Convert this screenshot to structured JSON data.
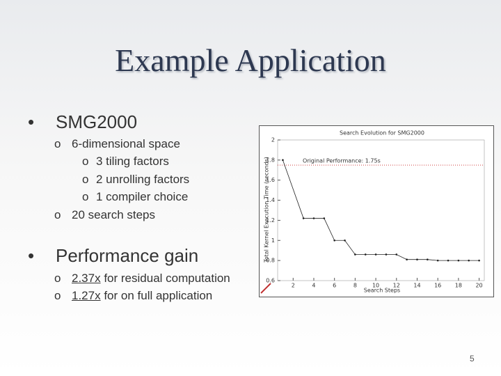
{
  "slide": {
    "title": "Example Application",
    "bullets": [
      {
        "text": "SMG2000",
        "items": [
          {
            "text": "6-dimensional space",
            "items": [
              "3 tiling factors",
              "2 unrolling factors",
              "1 compiler choice"
            ]
          },
          {
            "text": "20 search steps"
          }
        ]
      },
      {
        "text": "Performance gain",
        "items": [
          {
            "emphasis": "2.37x",
            "text": "for residual computation"
          },
          {
            "emphasis": "1.27x",
            "text": "for on full application"
          }
        ]
      }
    ],
    "page_number": "5"
  },
  "chart_data": {
    "type": "line",
    "title": "Search Evolution for SMG2000",
    "x_label": "Search Steps",
    "y_label": "Total Kernel Execution Time (seconds)",
    "reference_line": {
      "value": 1.75,
      "label": "Original Performance: 1.75s",
      "color": "#d04040"
    },
    "x": [
      1,
      3,
      4,
      5,
      6,
      7,
      8,
      9,
      10,
      11,
      12,
      13,
      14,
      15,
      16,
      17,
      18,
      19,
      20
    ],
    "values": [
      1.8,
      1.22,
      1.22,
      1.22,
      1.0,
      1.0,
      0.86,
      0.86,
      0.86,
      0.86,
      0.86,
      0.81,
      0.81,
      0.81,
      0.8,
      0.8,
      0.8,
      0.8,
      0.8
    ],
    "color": "#222222",
    "xlim": [
      0.5,
      20.5
    ],
    "xticks": [
      2,
      4,
      6,
      8,
      10,
      12,
      14,
      16,
      18,
      20
    ],
    "ylim": [
      0.6,
      2
    ],
    "yticks": [
      0.6,
      0.8,
      1,
      1.2,
      1.4,
      1.6,
      1.8,
      2
    ]
  }
}
